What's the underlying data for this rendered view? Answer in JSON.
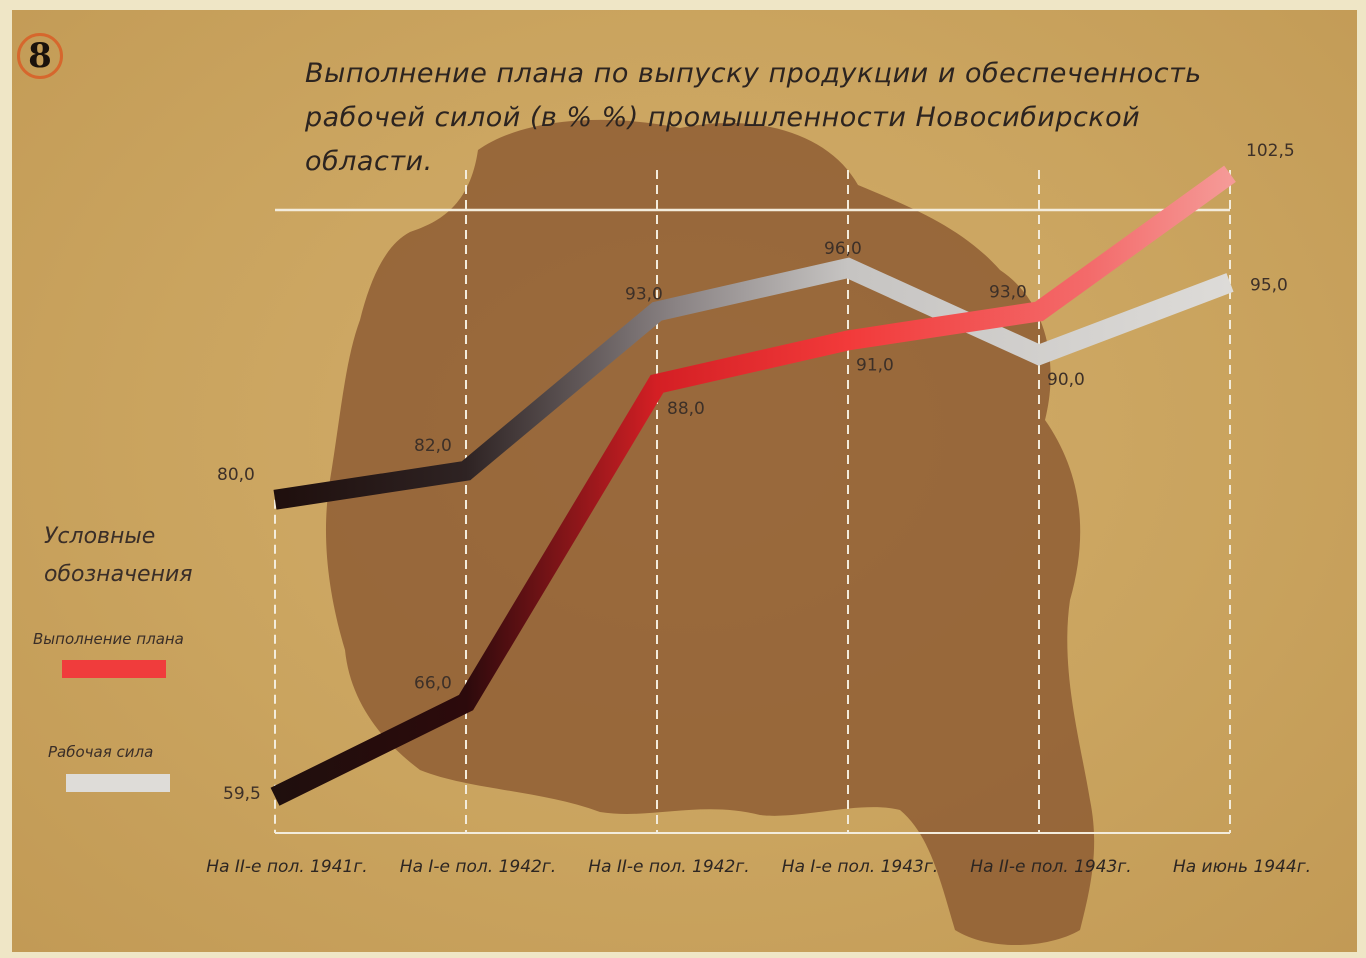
{
  "page_number": "8",
  "chart_data": {
    "type": "line",
    "title": "Выполнение плана по выпуску продукции и обеспеченность рабочей силой (в % %) промышленности Новосибирской области.",
    "categories": [
      "На II-е пол. 1941г.",
      "На I-е пол. 1942г.",
      "На II-е пол. 1942г.",
      "На I-е пол. 1943г.",
      "На II-е пол. 1943г.",
      "На июнь 1944г."
    ],
    "series": [
      {
        "name": "Выполнение плана",
        "values": [
          59.5,
          66.0,
          88.0,
          91.0,
          93.0,
          102.5
        ],
        "labels": [
          "59,5",
          "66,0",
          "88,0",
          "91,0",
          "93,0",
          "102,5"
        ],
        "color": "#f03c3c"
      },
      {
        "name": "Рабочая сила",
        "values": [
          80.0,
          82.0,
          93.0,
          96.0,
          90.0,
          95.0
        ],
        "labels": [
          "80,0",
          "82,0",
          "93,0",
          "96,0",
          "90,0",
          "95,0"
        ],
        "color": "#d8d6d3"
      }
    ],
    "ylim": [
      57,
      103.5
    ],
    "reference_line": 100,
    "grid": "vertical dashed",
    "legend_placement": "left",
    "legend_title": "Условные обозначения"
  }
}
